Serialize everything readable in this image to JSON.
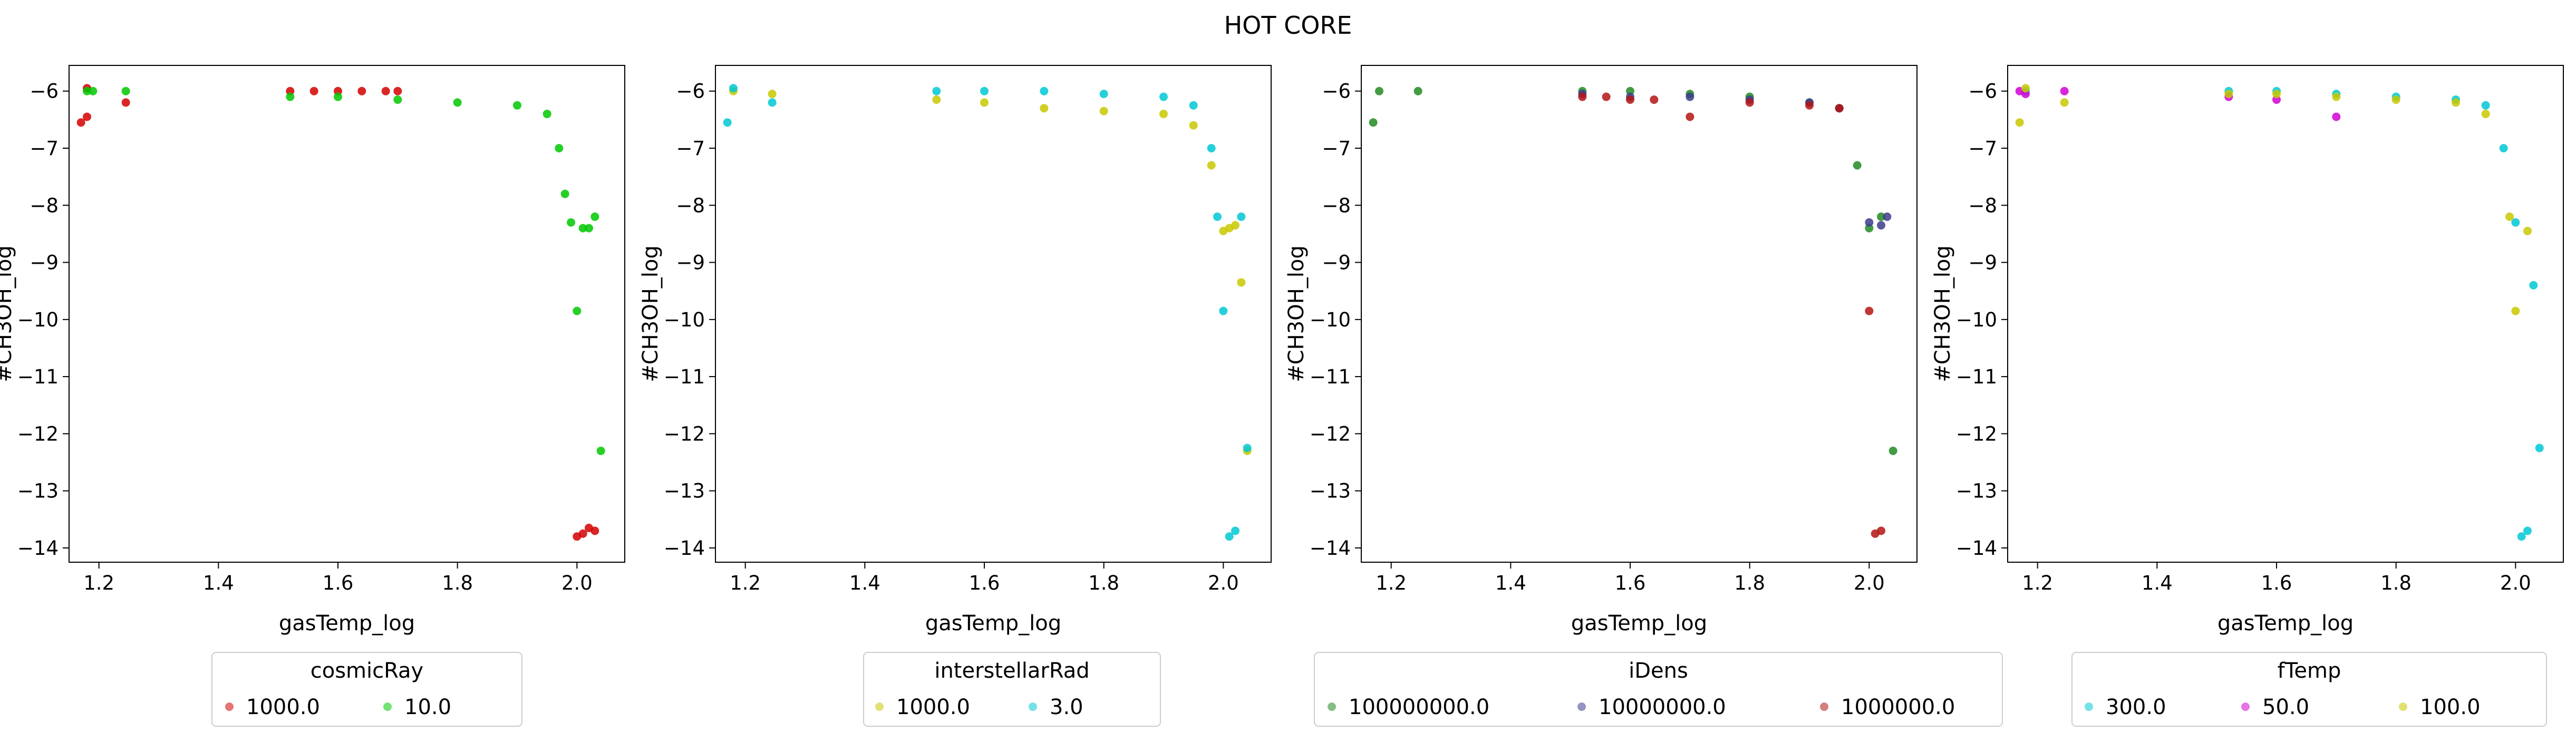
{
  "figure": {
    "title": "HOT CORE"
  },
  "chart_data": [
    {
      "type": "scatter",
      "xlabel": "gasTemp_log",
      "ylabel": "#CH3OH_log",
      "xlim": [
        1.15,
        2.08
      ],
      "ylim": [
        -14.25,
        -5.55
      ],
      "xticks": [
        "1.2",
        "1.4",
        "1.6",
        "1.8",
        "2.0"
      ],
      "yticks": [
        "-6",
        "-7",
        "-8",
        "-9",
        "-10",
        "-11",
        "-12",
        "-13",
        "-14"
      ],
      "legend": {
        "title": "cosmicRay",
        "placement": "below",
        "entries": [
          "1000.0",
          "10.0"
        ]
      },
      "series": [
        {
          "name": "1000.0",
          "color": "#d40000",
          "x": [
            1.17,
            1.18,
            1.18,
            1.245,
            1.52,
            1.56,
            1.6,
            1.64,
            1.68,
            1.7,
            2.0,
            2.01,
            2.02,
            2.03
          ],
          "y": [
            -6.55,
            -6.45,
            -5.95,
            -6.2,
            -6.0,
            -6.0,
            -6.0,
            -6.0,
            -6.0,
            -6.0,
            -13.8,
            -13.75,
            -13.65,
            -13.7
          ]
        },
        {
          "name": "10.0",
          "color": "#00c800",
          "x": [
            1.18,
            1.19,
            1.245,
            1.52,
            1.6,
            1.7,
            1.8,
            1.9,
            1.95,
            1.97,
            1.98,
            1.99,
            2.0,
            2.01,
            2.02,
            2.03,
            2.04
          ],
          "y": [
            -6.0,
            -6.0,
            -6.0,
            -6.1,
            -6.1,
            -6.15,
            -6.2,
            -6.25,
            -6.4,
            -7.0,
            -7.8,
            -8.3,
            -9.85,
            -8.4,
            -8.4,
            -8.2,
            -12.3
          ]
        }
      ]
    },
    {
      "type": "scatter",
      "xlabel": "gasTemp_log",
      "ylabel": "#CH3OH_log",
      "xlim": [
        1.15,
        2.08
      ],
      "ylim": [
        -14.25,
        -5.55
      ],
      "xticks": [
        "1.2",
        "1.4",
        "1.6",
        "1.8",
        "2.0"
      ],
      "yticks": [
        "-6",
        "-7",
        "-8",
        "-9",
        "-10",
        "-11",
        "-12",
        "-13",
        "-14"
      ],
      "legend": {
        "title": "interstellarRad",
        "placement": "below",
        "entries": [
          "1000.0",
          "3.0"
        ]
      },
      "series": [
        {
          "name": "1000.0",
          "color": "#c8c800",
          "x": [
            1.18,
            1.245,
            1.52,
            1.6,
            1.7,
            1.8,
            1.9,
            1.95,
            1.98,
            2.0,
            2.01,
            2.02,
            2.03,
            2.04
          ],
          "y": [
            -6.0,
            -6.05,
            -6.15,
            -6.2,
            -6.3,
            -6.35,
            -6.4,
            -6.6,
            -7.3,
            -8.45,
            -8.4,
            -8.35,
            -9.35,
            -12.3
          ]
        },
        {
          "name": "3.0",
          "color": "#00c8d4",
          "x": [
            1.17,
            1.18,
            1.245,
            1.52,
            1.6,
            1.7,
            1.8,
            1.9,
            1.95,
            1.98,
            1.99,
            2.0,
            2.01,
            2.02,
            2.03,
            2.04
          ],
          "y": [
            -6.55,
            -5.95,
            -6.2,
            -6.0,
            -6.0,
            -6.0,
            -6.05,
            -6.1,
            -6.25,
            -7.0,
            -8.2,
            -9.85,
            -13.8,
            -13.7,
            -8.2,
            -12.25
          ]
        }
      ]
    },
    {
      "type": "scatter",
      "xlabel": "gasTemp_log",
      "ylabel": "#CH3OH_log",
      "xlim": [
        1.15,
        2.08
      ],
      "ylim": [
        -14.25,
        -5.55
      ],
      "xticks": [
        "1.2",
        "1.4",
        "1.6",
        "1.8",
        "2.0"
      ],
      "yticks": [
        "-6",
        "-7",
        "-8",
        "-9",
        "-10",
        "-11",
        "-12",
        "-13",
        "-14"
      ],
      "legend": {
        "title": "iDens",
        "placement": "below",
        "entries": [
          "100000000.0",
          "10000000.0",
          "1000000.0"
        ]
      },
      "series": [
        {
          "name": "100000000.0",
          "color": "#228b22",
          "x": [
            1.17,
            1.18,
            1.245,
            1.52,
            1.6,
            1.7,
            1.8,
            1.9,
            1.95,
            1.98,
            2.0,
            2.02,
            2.04
          ],
          "y": [
            -6.55,
            -6.0,
            -6.0,
            -6.0,
            -6.0,
            -6.05,
            -6.1,
            -6.2,
            -6.3,
            -7.3,
            -8.4,
            -8.2,
            -12.3
          ]
        },
        {
          "name": "10000000.0",
          "color": "#3c3c8c",
          "x": [
            1.52,
            1.6,
            1.7,
            1.8,
            1.9,
            1.95,
            2.0,
            2.02,
            2.03
          ],
          "y": [
            -6.05,
            -6.1,
            -6.1,
            -6.15,
            -6.2,
            -6.3,
            -8.3,
            -8.35,
            -8.2
          ]
        },
        {
          "name": "1000000.0",
          "color": "#b41414",
          "x": [
            1.52,
            1.56,
            1.6,
            1.64,
            1.7,
            1.8,
            1.9,
            1.95,
            2.0,
            2.01,
            2.02
          ],
          "y": [
            -6.1,
            -6.1,
            -6.15,
            -6.15,
            -6.45,
            -6.2,
            -6.25,
            -6.3,
            -9.85,
            -13.75,
            -13.7
          ]
        }
      ]
    },
    {
      "type": "scatter",
      "xlabel": "gasTemp_log",
      "ylabel": "#CH3OH_log",
      "xlim": [
        1.15,
        2.08
      ],
      "ylim": [
        -14.25,
        -5.55
      ],
      "xticks": [
        "1.2",
        "1.4",
        "1.6",
        "1.8",
        "2.0"
      ],
      "yticks": [
        "-6",
        "-7",
        "-8",
        "-9",
        "-10",
        "-11",
        "-12",
        "-13",
        "-14"
      ],
      "legend": {
        "title": "fTemp",
        "placement": "below",
        "entries": [
          "300.0",
          "50.0",
          "100.0"
        ]
      },
      "series": [
        {
          "name": "300.0",
          "color": "#00c8d4",
          "x": [
            1.18,
            1.52,
            1.6,
            1.7,
            1.8,
            1.9,
            1.95,
            1.98,
            2.0,
            2.01,
            2.02,
            2.03,
            2.04
          ],
          "y": [
            -6.0,
            -6.0,
            -6.0,
            -6.05,
            -6.1,
            -6.15,
            -6.25,
            -7.0,
            -8.3,
            -13.8,
            -13.7,
            -9.4,
            -12.25
          ]
        },
        {
          "name": "50.0",
          "color": "#d400d4",
          "x": [
            1.17,
            1.18,
            1.245,
            1.52,
            1.6,
            1.7
          ],
          "y": [
            -6.0,
            -6.05,
            -6.0,
            -6.1,
            -6.15,
            -6.45
          ]
        },
        {
          "name": "100.0",
          "color": "#c8c800",
          "x": [
            1.17,
            1.18,
            1.245,
            1.52,
            1.6,
            1.7,
            1.8,
            1.9,
            1.95,
            1.99,
            2.0,
            2.02
          ],
          "y": [
            -6.55,
            -5.95,
            -6.2,
            -6.05,
            -6.05,
            -6.1,
            -6.15,
            -6.2,
            -6.4,
            -8.2,
            -9.85,
            -8.45
          ]
        }
      ]
    }
  ]
}
